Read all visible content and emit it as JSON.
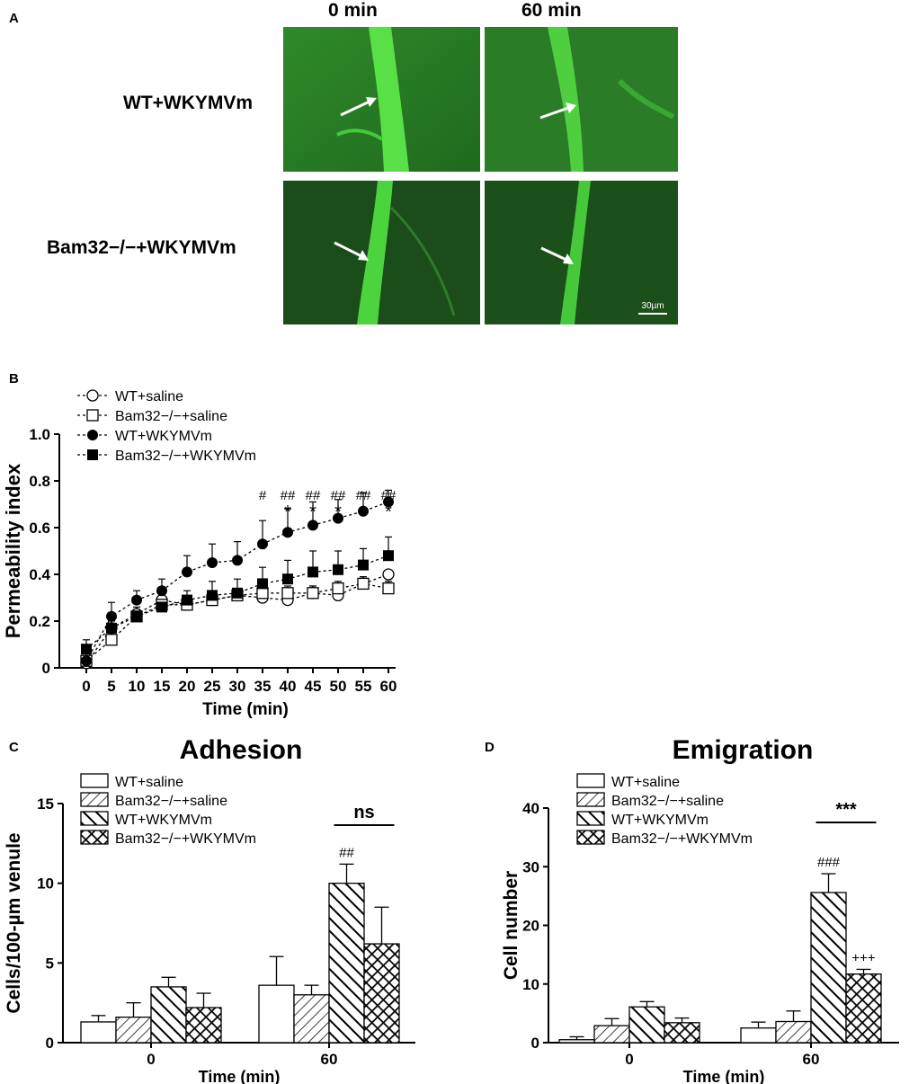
{
  "panel_a": {
    "label": "A",
    "columns": [
      "0 min",
      "60 min"
    ],
    "rows": [
      "WT+WKYMVm",
      "Bam32−/−+WKYMVm"
    ],
    "scale_bar": "30µm"
  },
  "chart_data": [
    {
      "panel": "B",
      "type": "line",
      "ylabel": "Permeability index",
      "xlabel": "Time (min)",
      "x": [
        0,
        5,
        10,
        15,
        20,
        25,
        30,
        35,
        40,
        45,
        50,
        55,
        60
      ],
      "ylim": [
        0,
        1.0
      ],
      "yticks": [
        "0",
        "0.2",
        "0.4",
        "0.6",
        "0.8",
        "1.0"
      ],
      "series": [
        {
          "name": "WT+saline",
          "marker": "open-circle",
          "values": [
            0.02,
            0.17,
            0.23,
            0.29,
            0.27,
            0.29,
            0.31,
            0.3,
            0.29,
            0.32,
            0.31,
            0.36,
            0.4
          ],
          "errors": [
            0.01,
            0.03,
            0.03,
            0.03,
            0.03,
            0.03,
            0.03,
            0.03,
            0.03,
            0.03,
            0.03,
            0.03,
            0.0
          ]
        },
        {
          "name": "Bam32−/−+saline",
          "marker": "open-square",
          "values": [
            0.03,
            0.12,
            0.22,
            0.27,
            0.27,
            0.29,
            0.31,
            0.32,
            0.32,
            0.32,
            0.34,
            0.36,
            0.34
          ],
          "errors": [
            0.02,
            0.03,
            0.03,
            0.03,
            0.03,
            0.03,
            0.03,
            0.03,
            0.03,
            0.03,
            0.03,
            0.03,
            0.03
          ]
        },
        {
          "name": "WT+WKYMVm",
          "marker": "filled-circle",
          "values": [
            0.03,
            0.22,
            0.29,
            0.33,
            0.41,
            0.45,
            0.46,
            0.53,
            0.58,
            0.61,
            0.64,
            0.67,
            0.71
          ],
          "errors": [
            0.03,
            0.06,
            0.04,
            0.05,
            0.07,
            0.08,
            0.08,
            0.1,
            0.1,
            0.1,
            0.08,
            0.08,
            0.05
          ]
        },
        {
          "name": "Bam32−/−+WKYMVm",
          "marker": "filled-square",
          "values": [
            0.08,
            0.17,
            0.22,
            0.26,
            0.29,
            0.31,
            0.32,
            0.36,
            0.38,
            0.41,
            0.42,
            0.44,
            0.48
          ],
          "errors": [
            0.04,
            0.05,
            0.03,
            0.04,
            0.04,
            0.06,
            0.06,
            0.07,
            0.08,
            0.09,
            0.08,
            0.07,
            0.08
          ]
        }
      ],
      "annotations": [
        {
          "x": 35,
          "text": "#",
          "row": "upper"
        },
        {
          "x": 40,
          "text": "##",
          "row": "upper"
        },
        {
          "x": 40,
          "text": "*",
          "row": "lower"
        },
        {
          "x": 45,
          "text": "##",
          "row": "upper"
        },
        {
          "x": 45,
          "text": "*",
          "row": "lower"
        },
        {
          "x": 50,
          "text": "##",
          "row": "upper"
        },
        {
          "x": 50,
          "text": "*",
          "row": "lower"
        },
        {
          "x": 55,
          "text": "##",
          "row": "upper"
        },
        {
          "x": 55,
          "text": "*",
          "row": "lower"
        },
        {
          "x": 60,
          "text": "##",
          "row": "upper"
        },
        {
          "x": 60,
          "text": "*",
          "row": "lower"
        }
      ],
      "legend": "top-left"
    },
    {
      "panel": "C",
      "type": "bar",
      "title": "Adhesion",
      "ylabel": "Cells/100-µm venule",
      "xlabel": "Time (min)",
      "categories": [
        "0",
        "60"
      ],
      "ylim": [
        0,
        15
      ],
      "yticks": [
        "0",
        "5",
        "10",
        "15"
      ],
      "series": [
        {
          "name": "WT+saline",
          "pattern": "open",
          "values": [
            1.3,
            3.6
          ],
          "errors": [
            0.4,
            1.8
          ]
        },
        {
          "name": "Bam32−/−+saline",
          "pattern": "hatch-fwd",
          "values": [
            1.6,
            3.0
          ],
          "errors": [
            0.9,
            0.6
          ]
        },
        {
          "name": "WT+WKYMVm",
          "pattern": "hatch-back",
          "values": [
            3.5,
            10.0
          ],
          "errors": [
            0.6,
            1.2
          ]
        },
        {
          "name": "Bam32−/−+WKYMVm",
          "pattern": "crosshatch",
          "values": [
            2.2,
            6.2
          ],
          "errors": [
            0.9,
            2.3
          ]
        }
      ],
      "annotations": [
        {
          "text": "##",
          "category": "60",
          "series": 2
        }
      ],
      "significance": {
        "text": "ns",
        "from_series": 2,
        "to_series": 3,
        "category": "60"
      },
      "legend": "top-left"
    },
    {
      "panel": "D",
      "type": "bar",
      "title": "Emigration",
      "ylabel": "Cell number",
      "xlabel": "Time (min)",
      "categories": [
        "0",
        "60"
      ],
      "ylim": [
        0,
        40
      ],
      "yticks": [
        "0",
        "10",
        "20",
        "30",
        "40"
      ],
      "series": [
        {
          "name": "WT+saline",
          "pattern": "open",
          "values": [
            0.5,
            2.5
          ],
          "errors": [
            0.5,
            1.0
          ]
        },
        {
          "name": "Bam32−/−+saline",
          "pattern": "hatch-fwd",
          "values": [
            2.9,
            3.6
          ],
          "errors": [
            1.2,
            1.8
          ]
        },
        {
          "name": "WT+WKYMVm",
          "pattern": "hatch-back",
          "values": [
            6.1,
            25.6
          ],
          "errors": [
            0.9,
            3.2
          ]
        },
        {
          "name": "Bam32−/−+WKYMVm",
          "pattern": "crosshatch",
          "values": [
            3.4,
            11.7
          ],
          "errors": [
            0.8,
            0.8
          ]
        }
      ],
      "annotations": [
        {
          "text": "###",
          "category": "60",
          "series": 2
        },
        {
          "text": "+++",
          "category": "60",
          "series": 3
        }
      ],
      "significance": {
        "text": "***",
        "from_series": 2,
        "to_series": 3,
        "category": "60"
      },
      "legend": "top-left"
    }
  ]
}
